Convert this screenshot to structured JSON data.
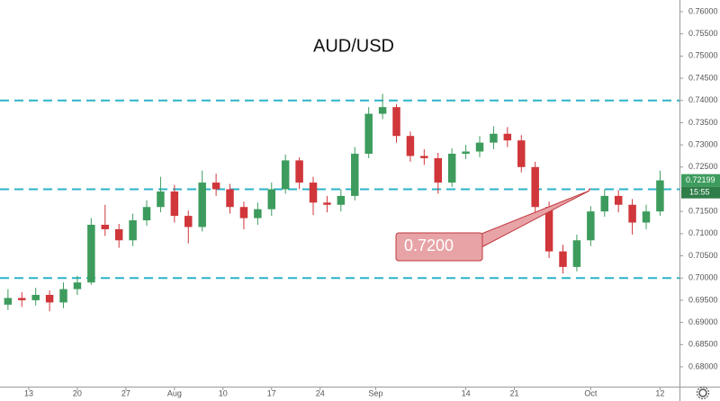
{
  "chart_data": {
    "type": "candlestick",
    "title": "AUD/USD",
    "x": [
      -3,
      -1,
      1,
      3,
      5,
      7,
      9,
      11,
      13,
      15,
      17,
      19,
      21,
      23,
      25,
      27,
      29,
      31,
      33,
      35,
      37,
      39,
      41,
      43,
      45,
      47,
      49,
      51,
      53,
      55,
      57,
      59,
      61,
      63,
      65,
      67,
      69,
      71,
      73,
      75,
      77,
      79,
      81,
      83,
      85,
      87,
      89,
      91
    ],
    "open": [
      0.694,
      0.6955,
      0.695,
      0.6962,
      0.6945,
      0.6975,
      0.699,
      0.712,
      0.711,
      0.7085,
      0.713,
      0.716,
      0.7195,
      0.714,
      0.7115,
      0.7215,
      0.72,
      0.716,
      0.7135,
      0.7155,
      0.72,
      0.7265,
      0.7215,
      0.717,
      0.7165,
      0.7185,
      0.728,
      0.737,
      0.7385,
      0.732,
      0.7275,
      0.727,
      0.7215,
      0.728,
      0.7285,
      0.7305,
      0.7325,
      0.731,
      0.725,
      0.716,
      0.706,
      0.7025,
      0.7085,
      0.715,
      0.7185,
      0.7165,
      0.7125,
      0.715
    ],
    "high": [
      0.6975,
      0.6968,
      0.6978,
      0.6972,
      0.699,
      0.7005,
      0.7135,
      0.7165,
      0.7122,
      0.7145,
      0.7175,
      0.7228,
      0.721,
      0.7152,
      0.7242,
      0.7235,
      0.7212,
      0.7172,
      0.717,
      0.7215,
      0.7278,
      0.7272,
      0.7228,
      0.7185,
      0.72,
      0.7295,
      0.7385,
      0.7415,
      0.7392,
      0.733,
      0.729,
      0.7282,
      0.7292,
      0.73,
      0.732,
      0.7342,
      0.734,
      0.7322,
      0.7262,
      0.7172,
      0.7075,
      0.7098,
      0.7162,
      0.72,
      0.7198,
      0.7178,
      0.7165,
      0.7242
    ],
    "low": [
      0.6928,
      0.6935,
      0.6938,
      0.6925,
      0.6932,
      0.6962,
      0.6985,
      0.7095,
      0.7068,
      0.7072,
      0.7118,
      0.7148,
      0.7125,
      0.7078,
      0.7105,
      0.7185,
      0.7145,
      0.711,
      0.712,
      0.714,
      0.719,
      0.72,
      0.7142,
      0.7148,
      0.715,
      0.7175,
      0.727,
      0.7358,
      0.7305,
      0.7262,
      0.7255,
      0.719,
      0.7205,
      0.7268,
      0.7272,
      0.729,
      0.7295,
      0.7238,
      0.7145,
      0.7045,
      0.701,
      0.7015,
      0.7072,
      0.7138,
      0.7148,
      0.7098,
      0.711,
      0.714
    ],
    "close": [
      0.6955,
      0.695,
      0.6962,
      0.6945,
      0.6975,
      0.699,
      0.712,
      0.711,
      0.7085,
      0.713,
      0.716,
      0.7195,
      0.714,
      0.7115,
      0.7215,
      0.72,
      0.716,
      0.7135,
      0.7155,
      0.72,
      0.7265,
      0.7215,
      0.717,
      0.7165,
      0.7185,
      0.728,
      0.737,
      0.7385,
      0.732,
      0.7275,
      0.727,
      0.7215,
      0.728,
      0.7285,
      0.7305,
      0.7325,
      0.731,
      0.725,
      0.716,
      0.706,
      0.7025,
      0.7085,
      0.715,
      0.7185,
      0.7165,
      0.7125,
      0.715,
      0.722
    ],
    "up_color": "#3d9c5d",
    "down_color": "#d0363a",
    "xlim": [
      -4.15,
      93.8
    ],
    "xticks": [
      {
        "value": 0,
        "label": "13"
      },
      {
        "value": 7,
        "label": "20"
      },
      {
        "value": 14,
        "label": "27"
      },
      {
        "value": 21,
        "label": "Aug"
      },
      {
        "value": 28,
        "label": "10"
      },
      {
        "value": 35,
        "label": "17"
      },
      {
        "value": 42,
        "label": "24"
      },
      {
        "value": 50,
        "label": "Sep"
      },
      {
        "value": 63,
        "label": "14"
      },
      {
        "value": 70,
        "label": "21"
      },
      {
        "value": 81,
        "label": "Oct"
      },
      {
        "value": 91,
        "label": "12"
      }
    ],
    "ylim": [
      0.67554,
      0.76263
    ],
    "yticks": [
      {
        "value": 0.68,
        "label": "0.68000"
      },
      {
        "value": 0.685,
        "label": "0.68500"
      },
      {
        "value": 0.69,
        "label": "0.69000"
      },
      {
        "value": 0.695,
        "label": "0.69500"
      },
      {
        "value": 0.7,
        "label": "0.70000"
      },
      {
        "value": 0.705,
        "label": "0.70500"
      },
      {
        "value": 0.71,
        "label": "0.71000"
      },
      {
        "value": 0.715,
        "label": "0.71500"
      },
      {
        "value": 0.725,
        "label": "0.72500"
      },
      {
        "value": 0.73,
        "label": "0.73000"
      },
      {
        "value": 0.735,
        "label": "0.73500"
      },
      {
        "value": 0.74,
        "label": "0.74000"
      },
      {
        "value": 0.745,
        "label": "0.74500"
      },
      {
        "value": 0.75,
        "label": "0.75000"
      },
      {
        "value": 0.755,
        "label": "0.75500"
      },
      {
        "value": 0.76,
        "label": "0.76000"
      }
    ],
    "levels": [
      0.74,
      0.72,
      0.7
    ],
    "level_color": "#2bb3c9",
    "last_price": {
      "value": 0.72199,
      "label": "0.72199"
    },
    "countdown": "15:55",
    "annotation": {
      "value": 0.72,
      "label": "0.7200"
    }
  }
}
